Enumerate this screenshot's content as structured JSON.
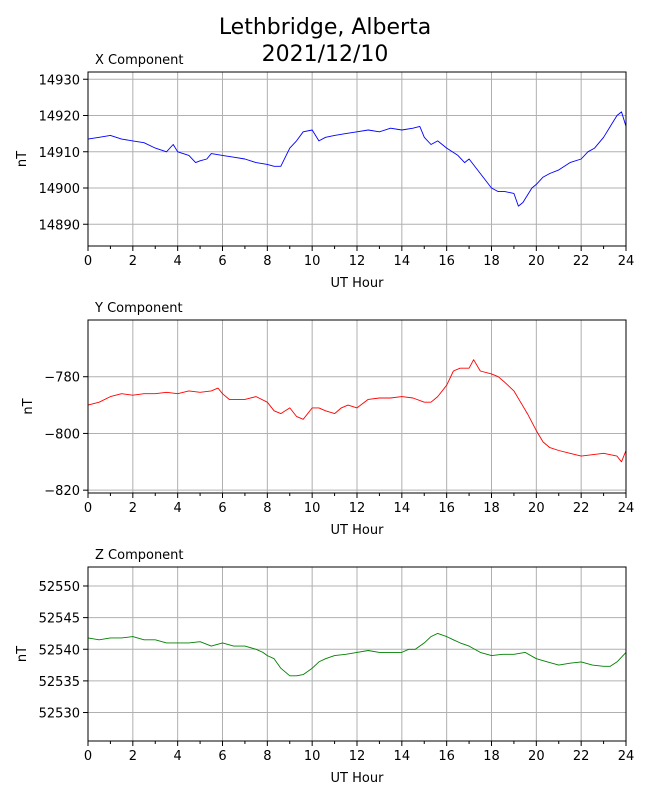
{
  "figure": {
    "title_line1": "Lethbridge, Alberta",
    "title_line2": "2021/12/10"
  },
  "chart_data": [
    {
      "type": "line",
      "title": "X Component",
      "xlabel": "UT Hour",
      "ylabel": "nT",
      "xlim": [
        0,
        24
      ],
      "ylim": [
        14884,
        14932
      ],
      "xticks": [
        0,
        2,
        4,
        6,
        8,
        10,
        12,
        14,
        16,
        18,
        20,
        22,
        24
      ],
      "yticks": [
        14890,
        14900,
        14910,
        14920,
        14930
      ],
      "grid": true,
      "color": "#0000ff",
      "x": [
        0,
        0.5,
        1,
        1.5,
        2,
        2.5,
        3,
        3.5,
        3.8,
        4,
        4.5,
        4.8,
        5,
        5.3,
        5.5,
        6,
        6.5,
        7,
        7.5,
        8,
        8.3,
        8.6,
        9,
        9.3,
        9.6,
        10,
        10.3,
        10.6,
        11,
        11.5,
        12,
        12.5,
        13,
        13.5,
        14,
        14.5,
        14.8,
        15,
        15.3,
        15.6,
        16,
        16.5,
        16.8,
        17,
        17.5,
        18,
        18.3,
        18.6,
        19,
        19.2,
        19.4,
        19.6,
        19.8,
        20,
        20.3,
        20.6,
        21,
        21.5,
        22,
        22.3,
        22.6,
        23,
        23.3,
        23.6,
        23.8,
        24
      ],
      "y": [
        14913.5,
        14914,
        14914.5,
        14913.5,
        14913,
        14912.5,
        14911,
        14910,
        14912,
        14910,
        14909,
        14907,
        14907.5,
        14908,
        14909.5,
        14909,
        14908.5,
        14908,
        14907,
        14906.5,
        14906,
        14906,
        14911,
        14913,
        14915.5,
        14916,
        14913,
        14914,
        14914.5,
        14915,
        14915.5,
        14916,
        14915.5,
        14916.5,
        14916,
        14916.5,
        14917,
        14914,
        14912,
        14913,
        14911,
        14909,
        14907,
        14908,
        14904,
        14900,
        14899,
        14899,
        14898.5,
        14895,
        14896,
        14898,
        14900,
        14901,
        14903,
        14904,
        14905,
        14907,
        14908,
        14910,
        14911,
        14914,
        14917,
        14920,
        14921,
        14917
      ]
    },
    {
      "type": "line",
      "title": "Y Component",
      "xlabel": "UT Hour",
      "ylabel": "nT",
      "xlim": [
        0,
        24
      ],
      "ylim": [
        -821,
        -760
      ],
      "xticks": [
        0,
        2,
        4,
        6,
        8,
        10,
        12,
        14,
        16,
        18,
        20,
        22,
        24
      ],
      "yticks": [
        -780,
        -800,
        -820
      ],
      "grid": true,
      "color": "#ff0000",
      "x": [
        0,
        0.5,
        1,
        1.5,
        2,
        2.5,
        3,
        3.5,
        4,
        4.5,
        5,
        5.5,
        5.8,
        6,
        6.3,
        6.6,
        7,
        7.5,
        8,
        8.3,
        8.6,
        9,
        9.3,
        9.6,
        10,
        10.3,
        10.6,
        11,
        11.3,
        11.6,
        12,
        12.5,
        13,
        13.5,
        14,
        14.5,
        15,
        15.3,
        15.6,
        16,
        16.3,
        16.6,
        17,
        17.2,
        17.5,
        18,
        18.3,
        18.6,
        19,
        19.3,
        19.6,
        20,
        20.3,
        20.6,
        21,
        21.5,
        22,
        22.5,
        23,
        23.3,
        23.6,
        23.8,
        24
      ],
      "y": [
        -790,
        -789,
        -787,
        -786,
        -786.5,
        -786,
        -786,
        -785.5,
        -786,
        -785,
        -785.5,
        -785,
        -784,
        -786,
        -788,
        -788,
        -788,
        -787,
        -789,
        -792,
        -793,
        -791,
        -794,
        -795,
        -791,
        -791,
        -792,
        -793,
        -791,
        -790,
        -791,
        -788,
        -787.5,
        -787.5,
        -787,
        -787.5,
        -789,
        -789,
        -787,
        -783,
        -778,
        -777,
        -777,
        -774,
        -778,
        -779,
        -780,
        -782,
        -785,
        -789,
        -793,
        -799,
        -803,
        -805,
        -806,
        -807,
        -808,
        -807.5,
        -807,
        -807.5,
        -808,
        -810,
        -806
      ]
    },
    {
      "type": "line",
      "title": "Z Component",
      "xlabel": "UT Hour",
      "ylabel": "nT",
      "xlim": [
        0,
        24
      ],
      "ylim": [
        52525.5,
        52553
      ],
      "xticks": [
        0,
        2,
        4,
        6,
        8,
        10,
        12,
        14,
        16,
        18,
        20,
        22,
        24
      ],
      "yticks": [
        52530,
        52535,
        52540,
        52545,
        52550
      ],
      "grid": true,
      "color": "#008000",
      "x": [
        0,
        0.5,
        1,
        1.5,
        2,
        2.5,
        3,
        3.5,
        4,
        4.5,
        5,
        5.5,
        6,
        6.5,
        7,
        7.5,
        7.8,
        8,
        8.3,
        8.6,
        9,
        9.3,
        9.6,
        10,
        10.3,
        10.6,
        11,
        11.5,
        12,
        12.5,
        13,
        13.5,
        14,
        14.3,
        14.6,
        15,
        15.3,
        15.6,
        16,
        16.3,
        16.6,
        17,
        17.5,
        18,
        18.5,
        19,
        19.5,
        20,
        20.5,
        21,
        21.5,
        22,
        22.5,
        23,
        23.3,
        23.6,
        24
      ],
      "y": [
        52541.8,
        52541.5,
        52541.8,
        52541.8,
        52542,
        52541.5,
        52541.5,
        52541,
        52541,
        52541,
        52541.2,
        52540.5,
        52541,
        52540.5,
        52540.5,
        52540,
        52539.5,
        52539,
        52538.5,
        52537,
        52535.8,
        52535.8,
        52536,
        52537,
        52538,
        52538.5,
        52539,
        52539.2,
        52539.5,
        52539.8,
        52539.5,
        52539.5,
        52539.5,
        52540,
        52540,
        52541,
        52542,
        52542.5,
        52542,
        52541.5,
        52541,
        52540.5,
        52539.5,
        52539,
        52539.2,
        52539.2,
        52539.5,
        52538.5,
        52538,
        52537.5,
        52537.8,
        52538,
        52537.5,
        52537.3,
        52537.3,
        52538,
        52539.5
      ]
    }
  ]
}
